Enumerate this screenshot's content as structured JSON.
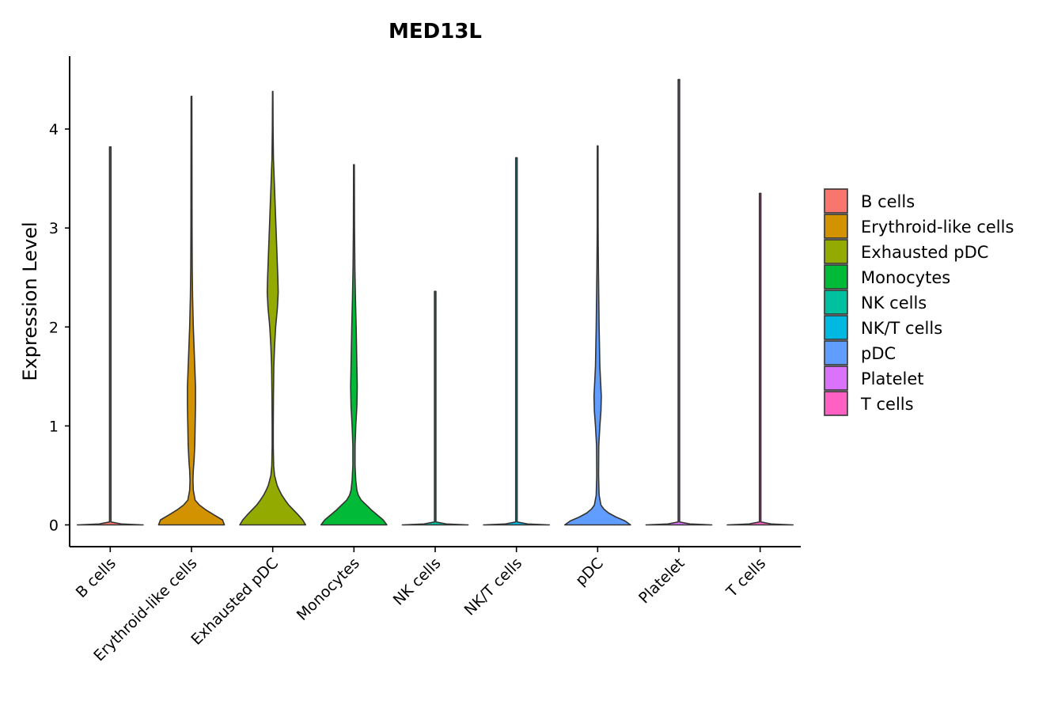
{
  "chart_data": {
    "type": "violin",
    "title": "MED13L",
    "xlabel": "",
    "ylabel": "Expression Level",
    "ylim": [
      -0.22,
      4.75
    ],
    "yticks": [
      0,
      1,
      2,
      3,
      4
    ],
    "categories": [
      "B cells",
      "Erythroid-like cells",
      "Exhausted pDC",
      "Monocytes",
      "NK cells",
      "NK/T cells",
      "pDC",
      "Platelet",
      "T cells"
    ],
    "colors": [
      "#F8766D",
      "#D39200",
      "#93AA00",
      "#00BA38",
      "#00C19F",
      "#00B9E3",
      "#619CFF",
      "#DB72FB",
      "#FF61C3"
    ],
    "legend": {
      "position": "right",
      "entries": [
        "B cells",
        "Erythroid-like cells",
        "Exhausted pDC",
        "Monocytes",
        "NK cells",
        "NK/T cells",
        "pDC",
        "Platelet",
        "T cells"
      ]
    },
    "violins": [
      {
        "name": "B cells",
        "max": 3.82,
        "profile": [
          [
            0,
            0.9
          ],
          [
            0.01,
            0.3
          ],
          [
            0.03,
            0.02
          ],
          [
            3.82,
            0.02
          ]
        ]
      },
      {
        "name": "Erythroid-like cells",
        "max": 4.33,
        "profile": [
          [
            0,
            0.9
          ],
          [
            0.05,
            0.85
          ],
          [
            0.1,
            0.62
          ],
          [
            0.15,
            0.4
          ],
          [
            0.2,
            0.22
          ],
          [
            0.25,
            0.1
          ],
          [
            0.35,
            0.05
          ],
          [
            0.45,
            0.04
          ],
          [
            0.55,
            0.05
          ],
          [
            0.65,
            0.07
          ],
          [
            0.8,
            0.09
          ],
          [
            1.0,
            0.1
          ],
          [
            1.2,
            0.11
          ],
          [
            1.4,
            0.11
          ],
          [
            1.6,
            0.09
          ],
          [
            1.8,
            0.07
          ],
          [
            2.0,
            0.05
          ],
          [
            2.3,
            0.03
          ],
          [
            2.6,
            0.02
          ],
          [
            3.0,
            0.015
          ],
          [
            4.33,
            0.01
          ]
        ]
      },
      {
        "name": "Exhausted pDC",
        "max": 4.38,
        "profile": [
          [
            0,
            0.9
          ],
          [
            0.05,
            0.82
          ],
          [
            0.1,
            0.7
          ],
          [
            0.15,
            0.57
          ],
          [
            0.2,
            0.44
          ],
          [
            0.25,
            0.34
          ],
          [
            0.3,
            0.25
          ],
          [
            0.35,
            0.18
          ],
          [
            0.4,
            0.12
          ],
          [
            0.5,
            0.05
          ],
          [
            0.6,
            0.025
          ],
          [
            0.8,
            0.015
          ],
          [
            1.0,
            0.015
          ],
          [
            1.3,
            0.02
          ],
          [
            1.6,
            0.03
          ],
          [
            1.8,
            0.05
          ],
          [
            2.0,
            0.08
          ],
          [
            2.2,
            0.13
          ],
          [
            2.35,
            0.15
          ],
          [
            2.5,
            0.14
          ],
          [
            2.7,
            0.12
          ],
          [
            3.0,
            0.09
          ],
          [
            3.3,
            0.06
          ],
          [
            3.5,
            0.04
          ],
          [
            3.7,
            0.02
          ],
          [
            4.0,
            0.01
          ],
          [
            4.38,
            0.005
          ]
        ]
      },
      {
        "name": "Monocytes",
        "max": 3.64,
        "profile": [
          [
            0,
            0.9
          ],
          [
            0.05,
            0.8
          ],
          [
            0.1,
            0.64
          ],
          [
            0.15,
            0.48
          ],
          [
            0.2,
            0.34
          ],
          [
            0.25,
            0.2
          ],
          [
            0.3,
            0.12
          ],
          [
            0.35,
            0.08
          ],
          [
            0.45,
            0.05
          ],
          [
            0.6,
            0.03
          ],
          [
            0.8,
            0.03
          ],
          [
            1.0,
            0.05
          ],
          [
            1.2,
            0.08
          ],
          [
            1.4,
            0.09
          ],
          [
            1.6,
            0.08
          ],
          [
            1.8,
            0.07
          ],
          [
            2.0,
            0.06
          ],
          [
            2.3,
            0.04
          ],
          [
            2.6,
            0.025
          ],
          [
            3.0,
            0.015
          ],
          [
            3.64,
            0.01
          ]
        ]
      },
      {
        "name": "NK cells",
        "max": 2.36,
        "profile": [
          [
            0,
            0.9
          ],
          [
            0.01,
            0.3
          ],
          [
            0.03,
            0.02
          ],
          [
            2.36,
            0.02
          ]
        ]
      },
      {
        "name": "NK/T cells",
        "max": 3.71,
        "profile": [
          [
            0,
            0.9
          ],
          [
            0.01,
            0.3
          ],
          [
            0.03,
            0.02
          ],
          [
            3.71,
            0.02
          ]
        ]
      },
      {
        "name": "pDC",
        "max": 3.83,
        "profile": [
          [
            0,
            0.9
          ],
          [
            0.04,
            0.75
          ],
          [
            0.08,
            0.5
          ],
          [
            0.12,
            0.3
          ],
          [
            0.16,
            0.17
          ],
          [
            0.2,
            0.09
          ],
          [
            0.3,
            0.04
          ],
          [
            0.5,
            0.025
          ],
          [
            0.8,
            0.03
          ],
          [
            1.0,
            0.06
          ],
          [
            1.15,
            0.09
          ],
          [
            1.3,
            0.1
          ],
          [
            1.45,
            0.08
          ],
          [
            1.6,
            0.06
          ],
          [
            1.8,
            0.05
          ],
          [
            2.0,
            0.04
          ],
          [
            2.3,
            0.03
          ],
          [
            2.6,
            0.02
          ],
          [
            3.0,
            0.012
          ],
          [
            3.83,
            0.01
          ]
        ]
      },
      {
        "name": "Platelet",
        "max": 4.5,
        "profile": [
          [
            0,
            0.9
          ],
          [
            0.01,
            0.3
          ],
          [
            0.03,
            0.02
          ],
          [
            4.5,
            0.02
          ]
        ]
      },
      {
        "name": "T cells",
        "max": 3.35,
        "profile": [
          [
            0,
            0.9
          ],
          [
            0.01,
            0.3
          ],
          [
            0.03,
            0.02
          ],
          [
            3.35,
            0.02
          ]
        ]
      }
    ]
  }
}
